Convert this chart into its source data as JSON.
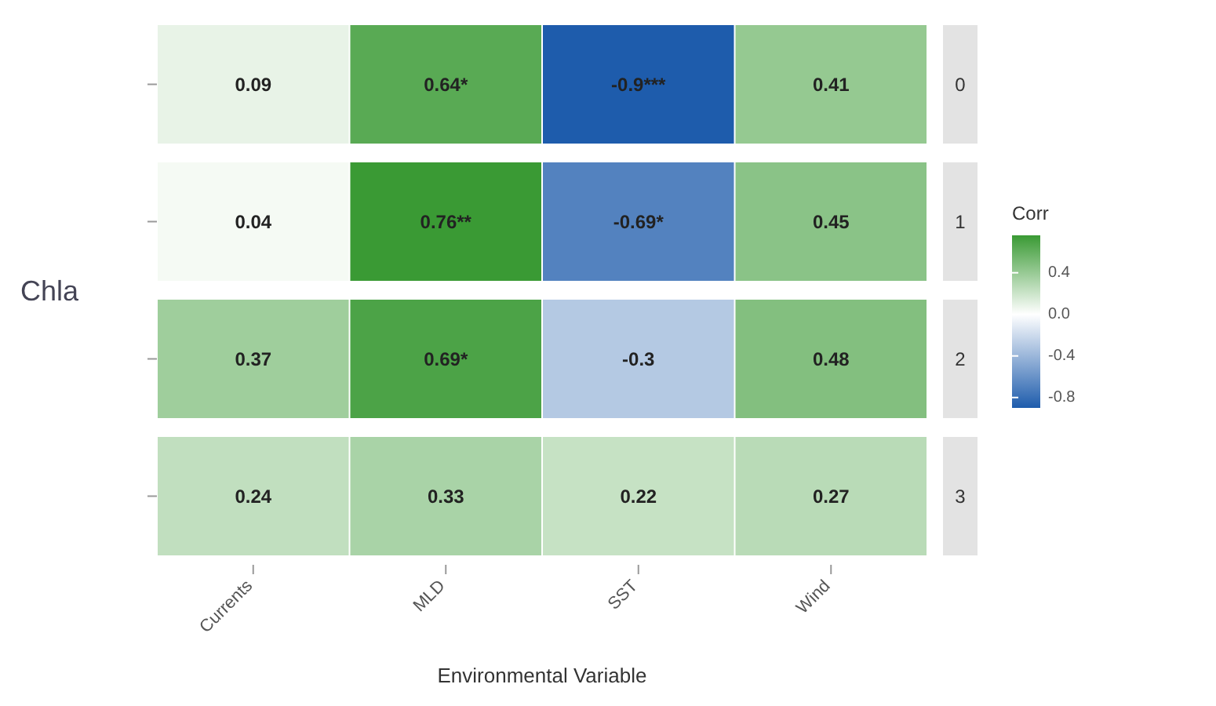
{
  "chart_data": {
    "type": "heatmap",
    "xlabel": "Environmental Variable",
    "ylabel": "Chla",
    "clabel": "Corr",
    "categories": [
      "Currents",
      "MLD",
      "SST",
      "Wind"
    ],
    "y_categories": [
      null,
      null,
      null,
      null
    ],
    "y2_categories": [
      "0",
      "1",
      "2",
      "3"
    ],
    "cells": [
      [
        0.09,
        0.64,
        -0.9,
        0.41
      ],
      [
        0.04,
        0.76,
        -0.69,
        0.45
      ],
      [
        0.37,
        0.69,
        -0.3,
        0.48
      ],
      [
        0.24,
        0.33,
        0.22,
        0.27
      ]
    ],
    "cell_labels": [
      [
        "0.09",
        "0.64*",
        "-0.9***",
        "0.41"
      ],
      [
        "0.04",
        "0.76**",
        "-0.69*",
        "0.45"
      ],
      [
        "0.37",
        "0.69*",
        "-0.3",
        "0.48"
      ],
      [
        "0.24",
        "0.33",
        "0.22",
        "0.27"
      ]
    ],
    "clim": [
      -0.9,
      0.76
    ],
    "cticks": [
      {
        "value": 0.4,
        "label": "0.4"
      },
      {
        "value": 0,
        "label": "0.0"
      },
      {
        "value": -0.4,
        "label": "-0.4"
      },
      {
        "value": -0.8,
        "label": "-0.8"
      }
    ]
  }
}
